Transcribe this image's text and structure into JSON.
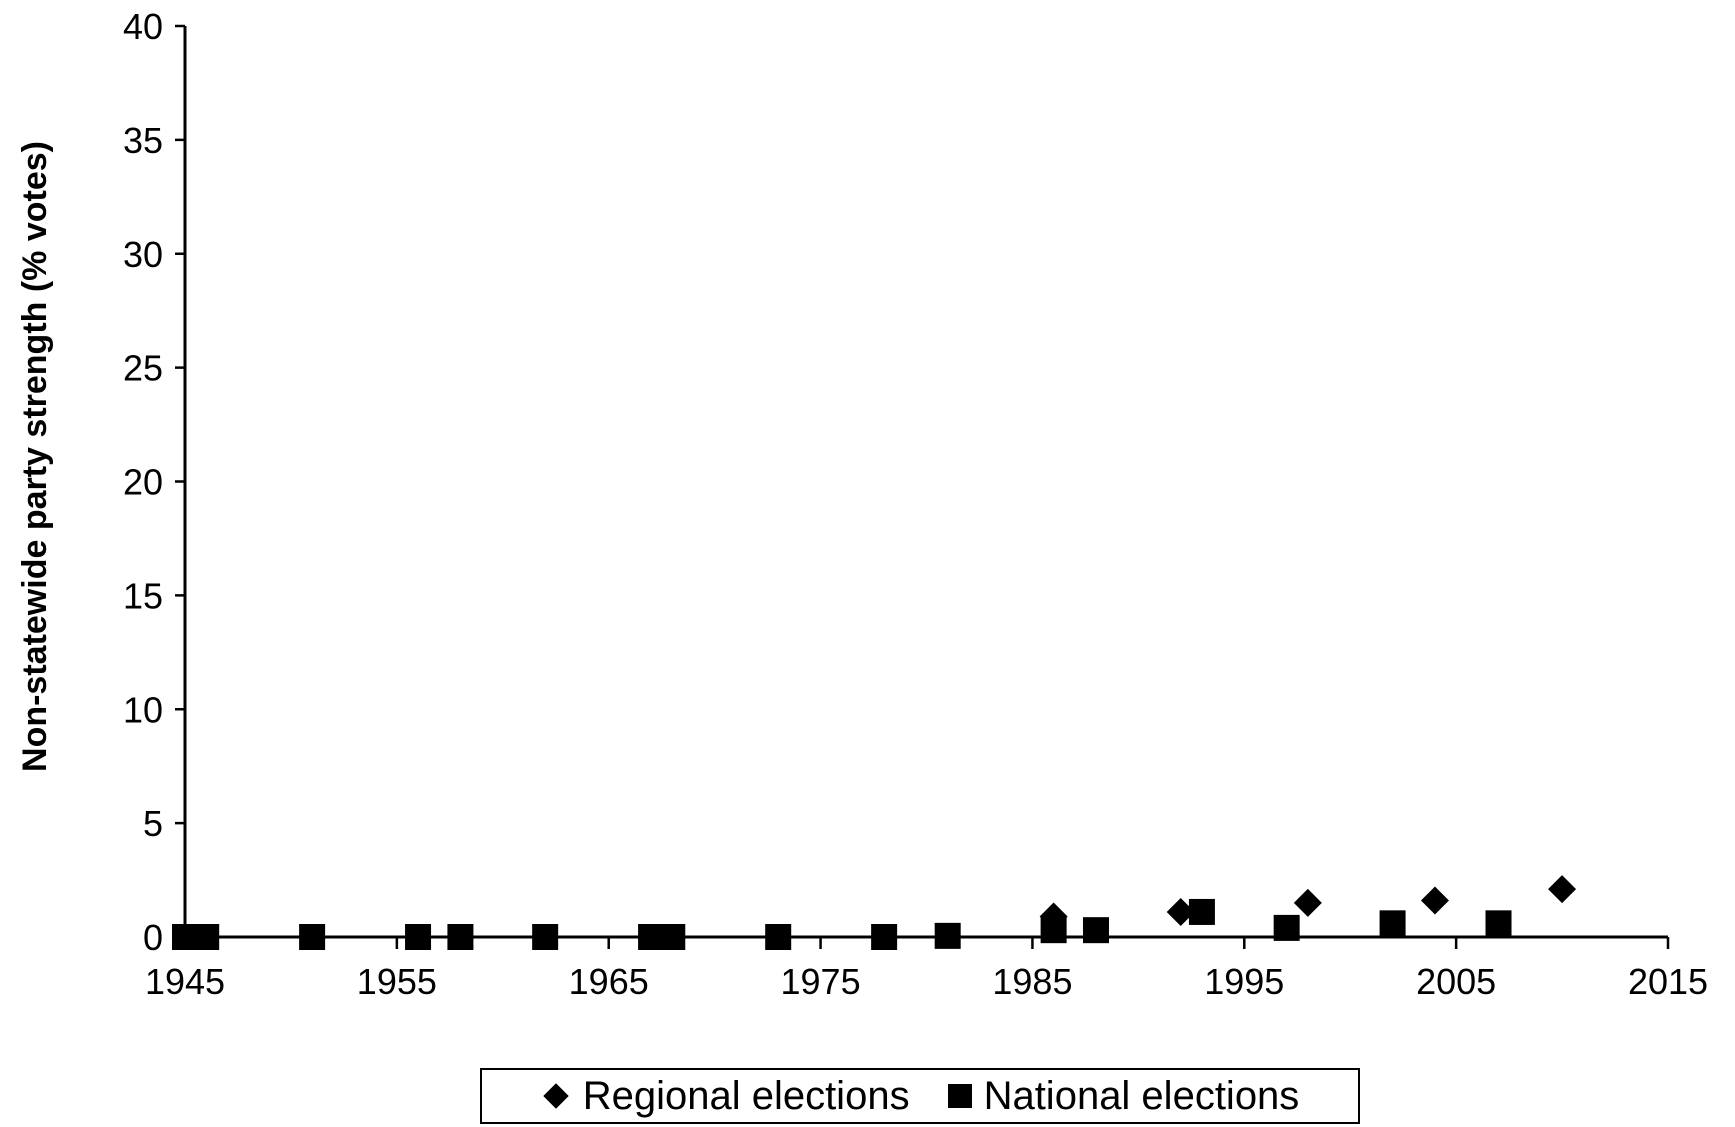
{
  "chart_data": {
    "type": "scatter",
    "title": "",
    "xlabel": "",
    "ylabel": "Non-statewide party strength (% votes)",
    "xlim": [
      1945,
      2015
    ],
    "ylim": [
      0,
      40
    ],
    "xticks": [
      1945,
      1955,
      1965,
      1975,
      1985,
      1995,
      2005,
      2015
    ],
    "yticks": [
      0,
      5,
      10,
      15,
      20,
      25,
      30,
      35,
      40
    ],
    "grid": false,
    "legend_position": "bottom",
    "series": [
      {
        "name": "Regional elections",
        "marker": "diamond",
        "color": "#000000",
        "points": [
          {
            "x": 1986,
            "y": 0.9
          },
          {
            "x": 1992,
            "y": 1.1
          },
          {
            "x": 1998,
            "y": 1.5
          },
          {
            "x": 2004,
            "y": 1.6
          },
          {
            "x": 2010,
            "y": 2.1
          }
        ]
      },
      {
        "name": "National elections",
        "marker": "square",
        "color": "#000000",
        "points": [
          {
            "x": 1945,
            "y": 0
          },
          {
            "x": 1945.5,
            "y": 0
          },
          {
            "x": 1946,
            "y": 0
          },
          {
            "x": 1951,
            "y": 0
          },
          {
            "x": 1956,
            "y": 0
          },
          {
            "x": 1958,
            "y": 0
          },
          {
            "x": 1962,
            "y": 0
          },
          {
            "x": 1967,
            "y": 0
          },
          {
            "x": 1967.5,
            "y": 0
          },
          {
            "x": 1968,
            "y": 0
          },
          {
            "x": 1973,
            "y": 0
          },
          {
            "x": 1978,
            "y": 0
          },
          {
            "x": 1981,
            "y": 0.05
          },
          {
            "x": 1986,
            "y": 0.3
          },
          {
            "x": 1988,
            "y": 0.3
          },
          {
            "x": 1993,
            "y": 1.1
          },
          {
            "x": 1997,
            "y": 0.4
          },
          {
            "x": 2002,
            "y": 0.6
          },
          {
            "x": 2007,
            "y": 0.6
          }
        ]
      }
    ]
  }
}
